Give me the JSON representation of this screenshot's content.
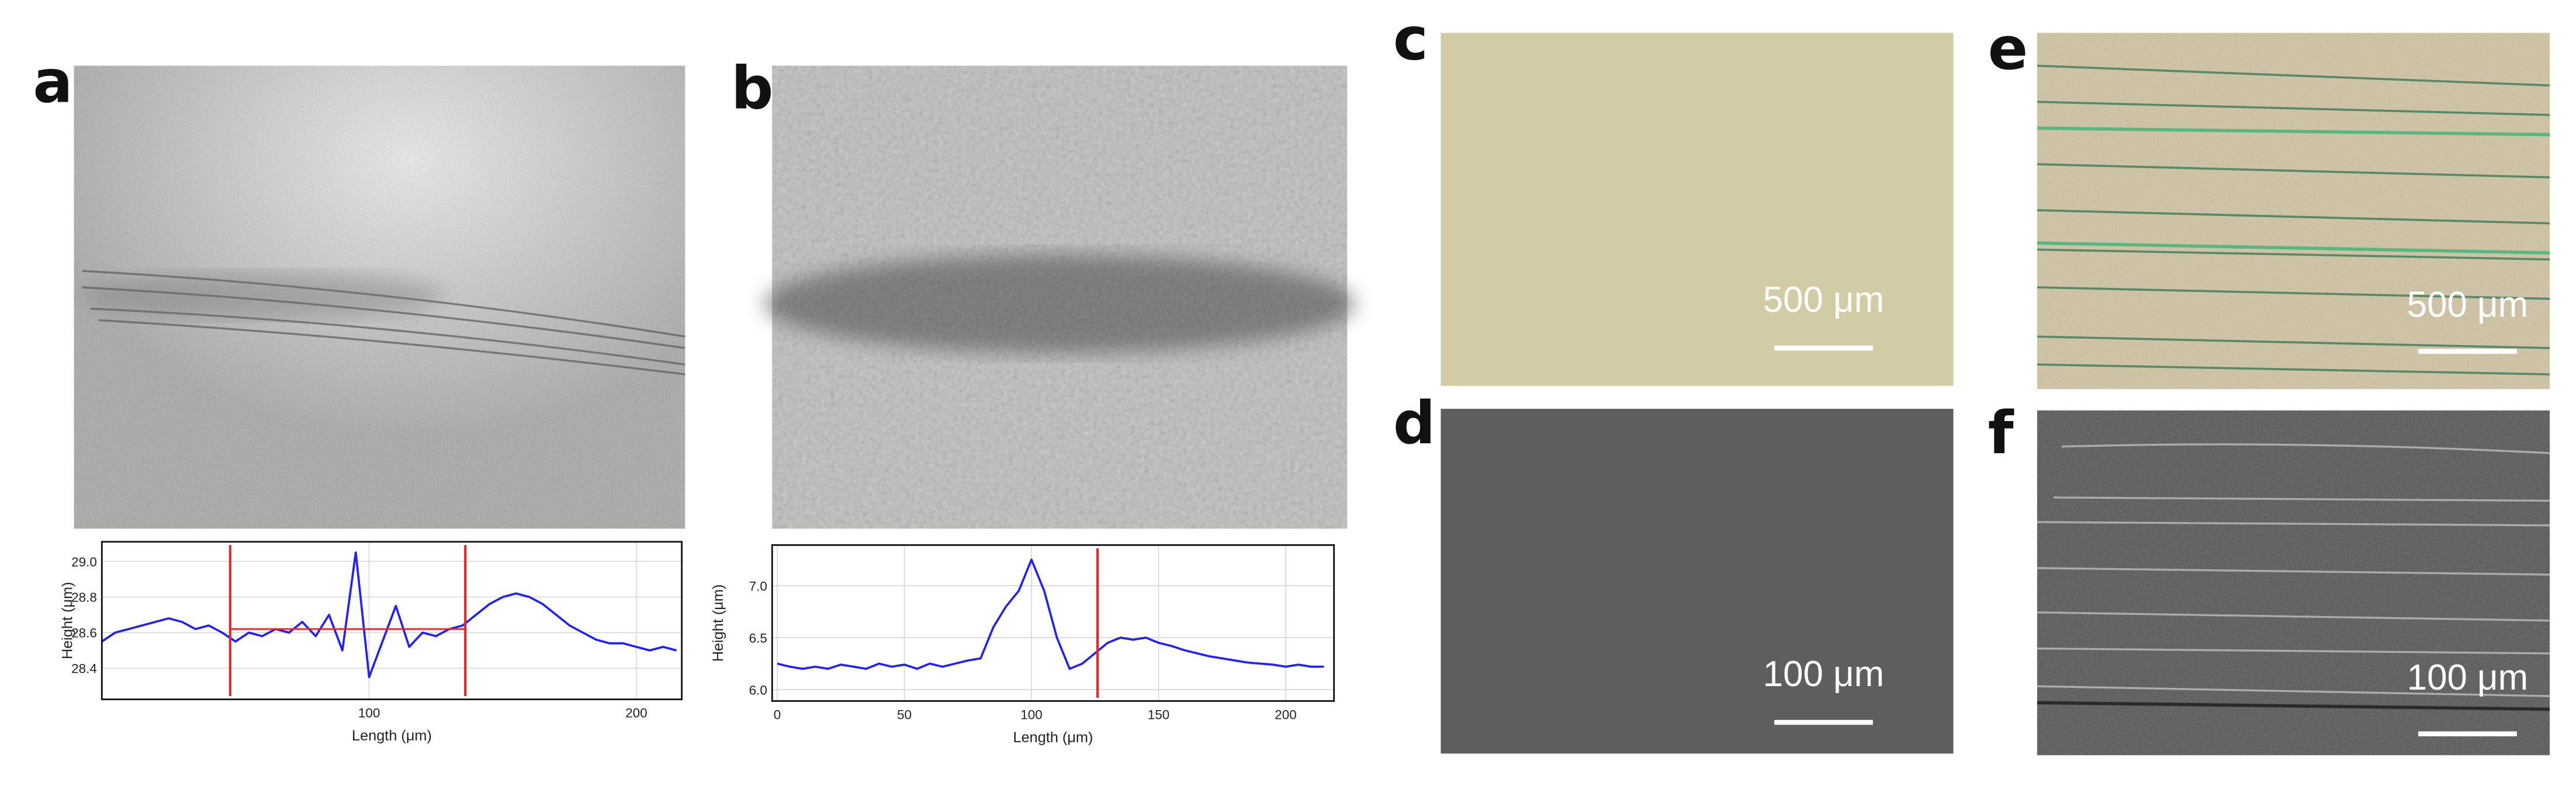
{
  "figure": {
    "panels": [
      {
        "label": "a"
      },
      {
        "label": "b"
      },
      {
        "label": "c",
        "scale_bar": "500 μm"
      },
      {
        "label": "d",
        "scale_bar": "100 μm"
      },
      {
        "label": "e",
        "scale_bar": "500 μm"
      },
      {
        "label": "f",
        "scale_bar": "100 μm"
      }
    ]
  },
  "chart_data": [
    {
      "type": "line",
      "x_label": "Length (μm)",
      "y_label": "Height (μm)",
      "x": [
        0,
        5,
        10,
        15,
        20,
        25,
        30,
        35,
        40,
        45,
        50,
        55,
        60,
        65,
        70,
        75,
        80,
        85,
        90,
        95,
        100,
        105,
        110,
        115,
        120,
        125,
        130,
        135,
        140,
        145,
        150,
        155,
        160,
        165,
        170,
        175,
        180,
        185,
        190,
        195,
        200,
        205,
        210,
        215
      ],
      "values": [
        28.55,
        28.6,
        28.62,
        28.64,
        28.66,
        28.68,
        28.66,
        28.62,
        28.64,
        28.6,
        28.55,
        28.6,
        28.58,
        28.62,
        28.6,
        28.66,
        28.58,
        28.7,
        28.5,
        29.05,
        28.35,
        28.55,
        28.75,
        28.52,
        28.6,
        28.58,
        28.62,
        28.64,
        28.7,
        28.76,
        28.8,
        28.82,
        28.8,
        28.76,
        28.7,
        28.64,
        28.6,
        28.56,
        28.54,
        28.54,
        28.52,
        28.5,
        28.52,
        28.5
      ],
      "color": "#1f1fff",
      "xlim": [
        0,
        217
      ],
      "xticks": [
        100,
        200
      ],
      "ylim": [
        28.225,
        29.11
      ],
      "yticks": [
        {
          "value": 29.0,
          "label": "29.0"
        },
        28.8,
        28.6,
        28.4
      ],
      "grid": true,
      "markers": {
        "x": [
          48,
          136
        ],
        "y": 28.62,
        "color": "#e02a2a"
      }
    },
    {
      "type": "line",
      "x_label": "Length (μm)",
      "y_label": "Height (μm)",
      "x": [
        0,
        5,
        10,
        15,
        20,
        25,
        30,
        35,
        40,
        45,
        50,
        55,
        60,
        65,
        70,
        75,
        80,
        85,
        90,
        95,
        100,
        105,
        110,
        115,
        120,
        125,
        130,
        135,
        140,
        145,
        150,
        155,
        160,
        165,
        170,
        175,
        180,
        185,
        190,
        195,
        200,
        205,
        210,
        215
      ],
      "values": [
        6.25,
        6.22,
        6.2,
        6.22,
        6.2,
        6.24,
        6.22,
        6.2,
        6.25,
        6.22,
        6.24,
        6.2,
        6.25,
        6.22,
        6.25,
        6.28,
        6.3,
        6.6,
        6.8,
        6.95,
        7.25,
        6.95,
        6.5,
        6.2,
        6.25,
        6.35,
        6.45,
        6.5,
        6.48,
        6.5,
        6.45,
        6.42,
        6.38,
        6.35,
        6.32,
        6.3,
        6.28,
        6.26,
        6.25,
        6.24,
        6.22,
        6.24,
        6.22,
        6.22
      ],
      "color": "#1f1fff",
      "xlim": [
        -2,
        219
      ],
      "xticks": [
        0,
        50,
        100,
        150,
        200
      ],
      "ylim": [
        5.89,
        7.39
      ],
      "yticks": [
        {
          "value": 7.0,
          "label": "7.0"
        },
        6.5,
        {
          "value": 6.0,
          "label": "6.0"
        }
      ],
      "grid": true,
      "markers": {
        "x": [
          126
        ],
        "color": "#e02a2a"
      }
    }
  ]
}
